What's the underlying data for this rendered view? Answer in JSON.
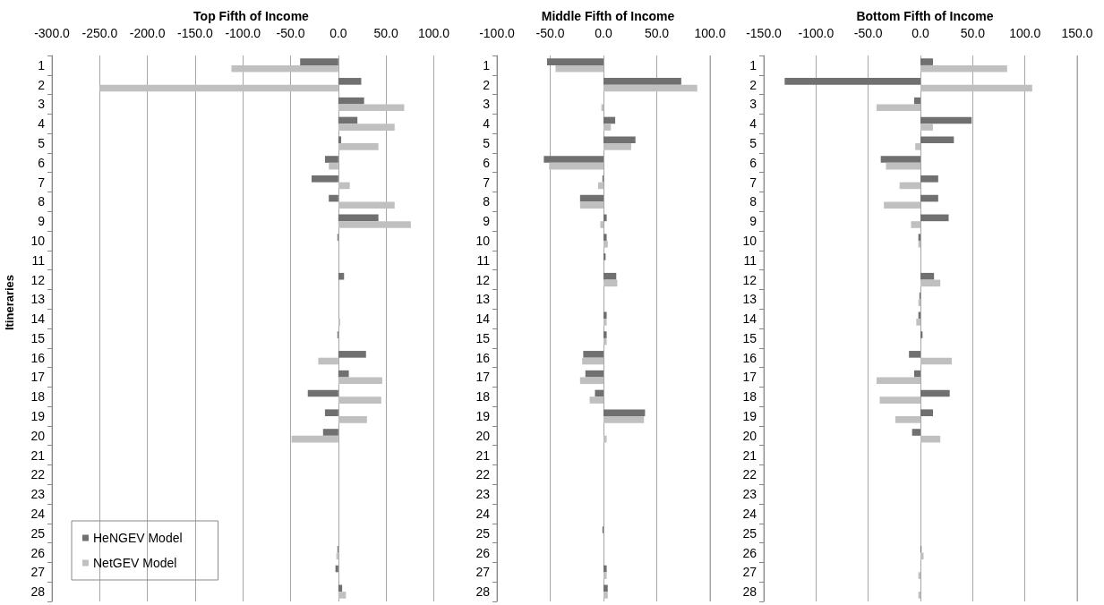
{
  "chart_data": [
    {
      "type": "bar",
      "orientation": "horizontal",
      "title": "Top Fifth of Income",
      "ylabel": "Itineraries",
      "categories": [
        "1",
        "2",
        "3",
        "4",
        "5",
        "6",
        "7",
        "8",
        "9",
        "10",
        "11",
        "12",
        "13",
        "14",
        "15",
        "16",
        "17",
        "18",
        "19",
        "20",
        "21",
        "22",
        "23",
        "24",
        "25",
        "26",
        "27",
        "28"
      ],
      "series": [
        {
          "name": "HeNGEV Model",
          "color": "#707070",
          "values": [
            -40,
            24,
            27,
            20,
            3,
            -14,
            -28,
            -10,
            42,
            -1,
            0,
            6,
            0,
            0,
            -1,
            29,
            11,
            -32,
            -14,
            -16,
            0,
            0,
            0,
            0,
            0,
            -1,
            -3,
            4
          ]
        },
        {
          "name": "NetGEV Model",
          "color": "#c0c0c0",
          "values": [
            -112,
            -250,
            69,
            59,
            42,
            -10,
            12,
            59,
            76,
            0,
            0,
            0,
            0,
            2,
            0,
            -21,
            46,
            45,
            30,
            -49,
            0,
            0,
            0,
            0,
            0,
            -2,
            0,
            8
          ]
        }
      ],
      "xlim": [
        -300,
        100
      ],
      "xticks": [
        {
          "value": -300,
          "label": "-300.0"
        },
        {
          "value": -250,
          "label": "-250.0"
        },
        {
          "value": -200,
          "label": "-200.0"
        },
        {
          "value": -150,
          "label": "-150.0"
        },
        {
          "value": -100,
          "label": "-100.0"
        },
        {
          "value": -50,
          "label": "-50.0"
        },
        {
          "value": 0,
          "label": "0.0"
        },
        {
          "value": 50,
          "label": "50.0"
        },
        {
          "value": 100,
          "label": "100.0"
        }
      ],
      "grid": "x",
      "legend": "bottom left"
    },
    {
      "type": "bar",
      "orientation": "horizontal",
      "title": "Middle Fifth of Income",
      "categories": [
        "1",
        "2",
        "3",
        "4",
        "5",
        "6",
        "7",
        "8",
        "9",
        "10",
        "11",
        "12",
        "13",
        "14",
        "15",
        "16",
        "17",
        "18",
        "19",
        "20",
        "21",
        "22",
        "23",
        "24",
        "25",
        "26",
        "27",
        "28"
      ],
      "series": [
        {
          "color": "#707070",
          "values": [
            -53,
            73,
            0,
            11,
            30,
            -56,
            -1,
            -22,
            3,
            3,
            2,
            12,
            0,
            3,
            3,
            -19,
            -17,
            -8,
            39,
            0,
            0,
            0,
            0,
            0,
            -1,
            0,
            3,
            4
          ]
        },
        {
          "color": "#c0c0c0",
          "values": [
            -45,
            88,
            -2,
            7,
            26,
            -51,
            -5,
            -22,
            -3,
            4,
            null,
            13,
            0,
            3,
            3,
            -20,
            -22,
            -13,
            38,
            3,
            0,
            0,
            0,
            0,
            null,
            0,
            3,
            4
          ]
        }
      ],
      "xlim": [
        -100,
        100
      ],
      "xticks": [
        {
          "value": -100,
          "label": "-100.0"
        },
        {
          "value": -50,
          "label": "-50.0"
        },
        {
          "value": 0,
          "label": "0.0"
        },
        {
          "value": 50,
          "label": "50.0"
        },
        {
          "value": 100,
          "label": "100.0"
        }
      ],
      "grid": "x"
    },
    {
      "type": "bar",
      "orientation": "horizontal",
      "title": "Bottom Fifth of Income",
      "categories": [
        "1",
        "2",
        "3",
        "4",
        "5",
        "6",
        "7",
        "8",
        "9",
        "10",
        "11",
        "12",
        "13",
        "14",
        "15",
        "16",
        "17",
        "18",
        "19",
        "20",
        "21",
        "22",
        "23",
        "24",
        "25",
        "26",
        "27",
        "28"
      ],
      "series": [
        {
          "color": "#707070",
          "values": [
            12,
            -130,
            -6,
            49,
            32,
            -38,
            17,
            17,
            27,
            -2,
            0,
            13,
            -1,
            -2,
            2,
            -11,
            -6,
            28,
            12,
            -8,
            0,
            0,
            0,
            0,
            0,
            1,
            0,
            0
          ]
        },
        {
          "color": "#c0c0c0",
          "values": [
            83,
            107,
            -42,
            12,
            -5,
            -33,
            -20,
            -35,
            -9,
            -2,
            0,
            19,
            -2,
            -4,
            0,
            30,
            -42,
            -39,
            -24,
            19,
            0,
            0,
            0,
            0,
            0,
            3,
            -2,
            -2
          ]
        }
      ],
      "xlim": [
        -150,
        150
      ],
      "xticks": [
        {
          "value": -150,
          "label": "-150.0"
        },
        {
          "value": -100,
          "label": "-100.0"
        },
        {
          "value": -50,
          "label": "-50.0"
        },
        {
          "value": 0,
          "label": "0.0"
        },
        {
          "value": 50,
          "label": "50.0"
        },
        {
          "value": 100,
          "label": "100.0"
        },
        {
          "value": 150,
          "label": "150.0"
        }
      ],
      "grid": "x"
    }
  ]
}
